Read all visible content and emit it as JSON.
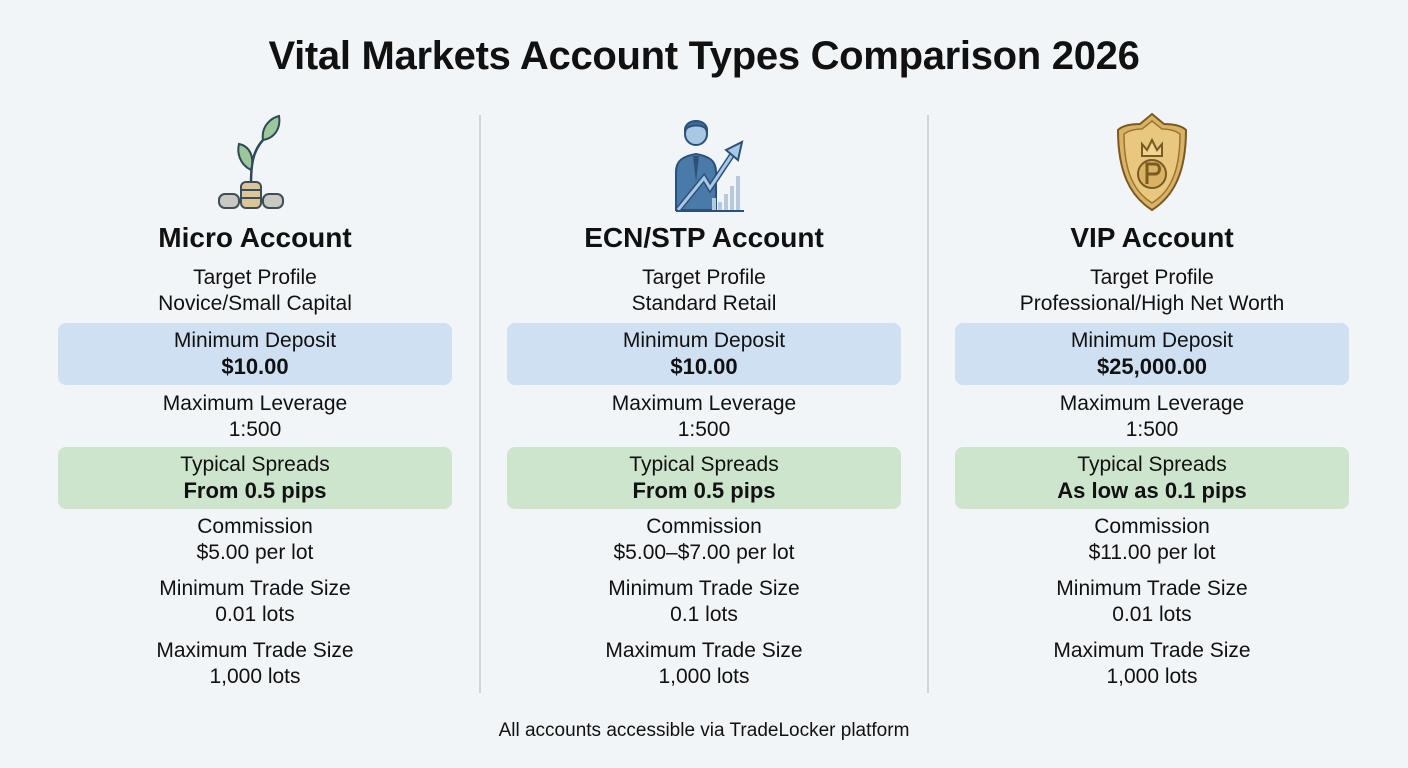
{
  "title": "Vital Markets Account Types Comparison 2026",
  "colors": {
    "deposit_box": "#cfe0f3",
    "spreads_box": "#cde5cc",
    "background": "#f2f5f8"
  },
  "columns": [
    {
      "icon": "plant-coins-icon",
      "name": "Micro Account",
      "target_profile": {
        "label": "Target Profile",
        "value": "Novice/Small Capital"
      },
      "minimum_deposit": {
        "label": "Minimum Deposit",
        "value": "$10.00"
      },
      "maximum_leverage": {
        "label": "Maximum Leverage",
        "value": "1:500"
      },
      "typical_spreads": {
        "label": "Typical Spreads",
        "value": "From 0.5 pips"
      },
      "commission": {
        "label": "Commission",
        "value": "$5.00 per lot"
      },
      "minimum_trade_size": {
        "label": "Minimum Trade Size",
        "value": "0.01 lots"
      },
      "maximum_trade_size": {
        "label": "Maximum Trade Size",
        "value": "1,000 lots"
      }
    },
    {
      "icon": "businessman-growth-chart-icon",
      "name": "ECN/STP Account",
      "target_profile": {
        "label": "Target Profile",
        "value": "Standard Retail"
      },
      "minimum_deposit": {
        "label": "Minimum Deposit",
        "value": "$10.00"
      },
      "maximum_leverage": {
        "label": "Maximum Leverage",
        "value": "1:500"
      },
      "typical_spreads": {
        "label": "Typical Spreads",
        "value": "From 0.5 pips"
      },
      "commission": {
        "label": "Commission",
        "value": "$5.00–$7.00 per lot"
      },
      "minimum_trade_size": {
        "label": "Minimum Trade Size",
        "value": "0.1 lots"
      },
      "maximum_trade_size": {
        "label": "Maximum Trade Size",
        "value": "1,000 lots"
      }
    },
    {
      "icon": "gold-shield-crown-icon",
      "name": "VIP Account",
      "target_profile": {
        "label": "Target Profile",
        "value": "Professional/High Net Worth"
      },
      "minimum_deposit": {
        "label": "Minimum Deposit",
        "value": "$25,000.00"
      },
      "maximum_leverage": {
        "label": "Maximum Leverage",
        "value": "1:500"
      },
      "typical_spreads": {
        "label": "Typical Spreads",
        "value": "As low as 0.1 pips"
      },
      "commission": {
        "label": "Commission",
        "value": "$11.00 per lot"
      },
      "minimum_trade_size": {
        "label": "Minimum Trade Size",
        "value": "0.01 lots"
      },
      "maximum_trade_size": {
        "label": "Maximum Trade Size",
        "value": "1,000 lots"
      }
    }
  ],
  "footer": "All accounts accessible via TradeLocker platform"
}
